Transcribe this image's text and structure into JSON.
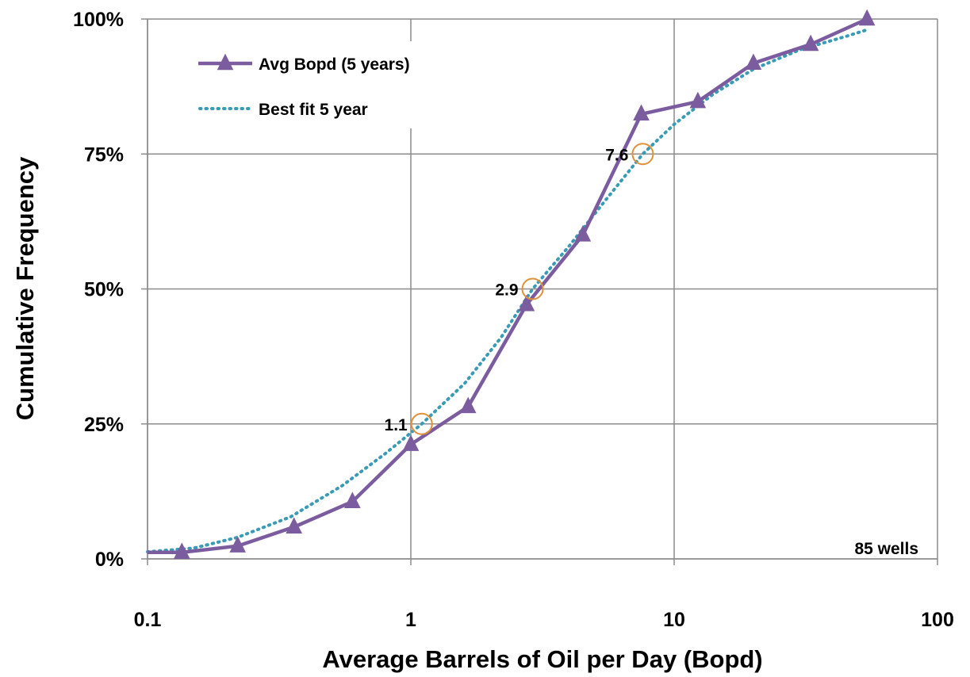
{
  "chart_data": {
    "type": "line",
    "xlabel": "Average Barrels of Oil per Day (Bopd)",
    "ylabel": "Cumulative Frequency",
    "x_scale": "log",
    "xlim": [
      0.1,
      100
    ],
    "ylim": [
      0,
      100
    ],
    "x_tick_labels": [
      "0.1",
      "1",
      "10",
      "100"
    ],
    "x_tick_values": [
      0.1,
      1,
      10,
      100
    ],
    "y_tick_labels": [
      "0%",
      "25%",
      "50%",
      "75%",
      "100%"
    ],
    "y_tick_values": [
      0,
      25,
      50,
      75,
      100
    ],
    "grid": true,
    "legend_position": "top-left",
    "note": "85 wells",
    "series": [
      {
        "name": "Avg Bopd (5 years)",
        "style": "solid line with triangle markers",
        "color": "#7B5C9E",
        "x": [
          0.1,
          0.135,
          0.22,
          0.36,
          0.6,
          1.0,
          1.65,
          2.75,
          4.5,
          7.5,
          12.3,
          20,
          33,
          54
        ],
        "y": [
          1.2,
          1.2,
          2.4,
          5.9,
          10.6,
          21.2,
          28.2,
          47.1,
          60.0,
          82.4,
          84.7,
          91.8,
          95.3,
          100.0
        ]
      },
      {
        "name": "Best fit 5 year",
        "style": "dotted line",
        "color": "#3A9BB5",
        "x": [
          0.1,
          0.15,
          0.22,
          0.35,
          0.55,
          0.8,
          1.1,
          1.6,
          2.2,
          2.9,
          4.0,
          5.5,
          7.6,
          10,
          14,
          20,
          30,
          45,
          54
        ],
        "y": [
          1.3,
          2.0,
          4.0,
          7.8,
          13.6,
          19.5,
          25.0,
          32.5,
          41.0,
          50.0,
          58.0,
          66.5,
          75.0,
          80.5,
          86.0,
          90.7,
          94.3,
          96.8,
          98.0
        ]
      }
    ],
    "annotations": [
      {
        "label": "1.1",
        "x": 1.1,
        "y": 25
      },
      {
        "label": "2.9",
        "x": 2.9,
        "y": 50
      },
      {
        "label": "7.6",
        "x": 7.6,
        "y": 75
      }
    ],
    "annotation_color": "#E0913A",
    "grid_color": "#8C8C8C"
  }
}
